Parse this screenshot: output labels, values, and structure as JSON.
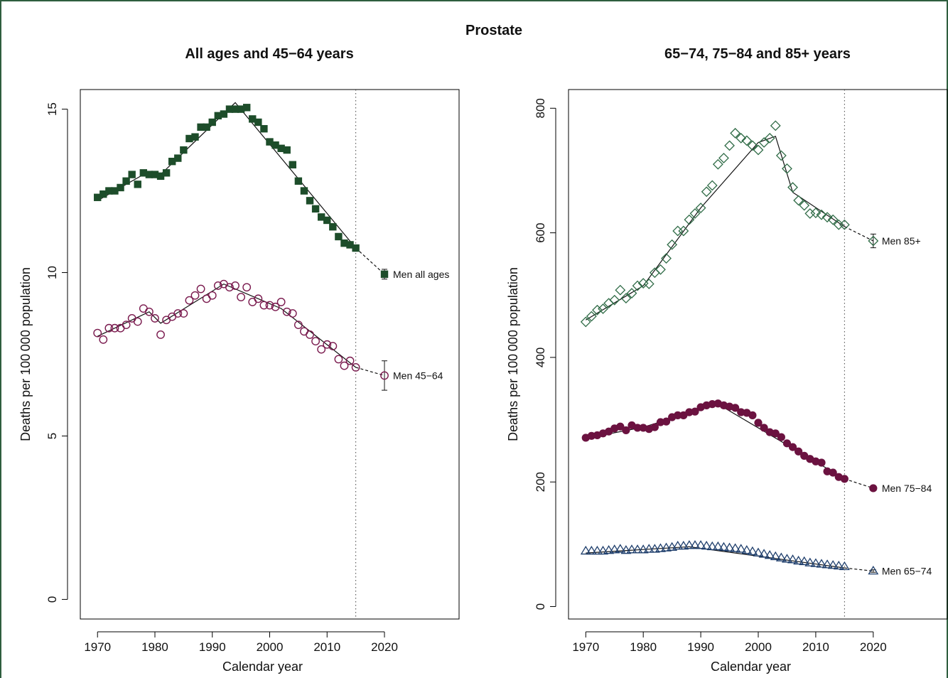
{
  "figure": {
    "title": "Prostate"
  },
  "chart_data": [
    {
      "type": "scatter",
      "title": "All ages and 45−64 years",
      "xlabel": "Calendar year",
      "ylabel": "Deaths per 100 000 population",
      "xlim": [
        1967,
        2033
      ],
      "ylim": [
        -0.6,
        15.6
      ],
      "xticks": [
        "1970",
        "1980",
        "1990",
        "2000",
        "2010",
        "2020"
      ],
      "yticks": [
        "0",
        "5",
        "10",
        "15"
      ],
      "reference_line_x": 2015,
      "series": [
        {
          "name": "Men all ages",
          "marker": "filled-square",
          "color": "#1d4d2a",
          "x": [
            1970,
            1971,
            1972,
            1973,
            1974,
            1975,
            1976,
            1977,
            1978,
            1979,
            1980,
            1981,
            1982,
            1983,
            1984,
            1985,
            1986,
            1987,
            1988,
            1989,
            1990,
            1991,
            1992,
            1993,
            1994,
            1995,
            1996,
            1997,
            1998,
            1999,
            2000,
            2001,
            2002,
            2003,
            2004,
            2005,
            2006,
            2007,
            2008,
            2009,
            2010,
            2011,
            2012,
            2013,
            2014,
            2015
          ],
          "values": [
            12.3,
            12.4,
            12.5,
            12.5,
            12.6,
            12.8,
            13.0,
            12.7,
            13.05,
            13.0,
            13.0,
            12.95,
            13.05,
            13.4,
            13.5,
            13.75,
            14.1,
            14.15,
            14.45,
            14.45,
            14.6,
            14.8,
            14.85,
            15.0,
            15.0,
            15.0,
            15.05,
            14.7,
            14.6,
            14.4,
            14.0,
            13.9,
            13.8,
            13.75,
            13.3,
            12.8,
            12.5,
            12.2,
            11.95,
            11.7,
            11.6,
            11.4,
            11.1,
            10.9,
            10.85,
            10.75
          ],
          "trend_x": [
            1970,
            1978,
            1981,
            1994,
            2015
          ],
          "trend": [
            12.2,
            13.0,
            13.0,
            15.2,
            10.75
          ],
          "projection": {
            "x": 2020,
            "value": 9.95,
            "ci_low": 9.8,
            "ci_high": 10.1
          }
        },
        {
          "name": "Men 45−64",
          "marker": "open-circle",
          "color": "#7a1a4e",
          "x": [
            1970,
            1971,
            1972,
            1973,
            1974,
            1975,
            1976,
            1977,
            1978,
            1979,
            1980,
            1981,
            1982,
            1983,
            1984,
            1985,
            1986,
            1987,
            1988,
            1989,
            1990,
            1991,
            1992,
            1993,
            1994,
            1995,
            1996,
            1997,
            1998,
            1999,
            2000,
            2001,
            2002,
            2003,
            2004,
            2005,
            2006,
            2007,
            2008,
            2009,
            2010,
            2011,
            2012,
            2013,
            2014,
            2015
          ],
          "values": [
            8.15,
            7.95,
            8.3,
            8.3,
            8.3,
            8.4,
            8.6,
            8.5,
            8.9,
            8.8,
            8.6,
            8.1,
            8.55,
            8.65,
            8.75,
            8.75,
            9.15,
            9.3,
            9.5,
            9.2,
            9.3,
            9.6,
            9.65,
            9.55,
            9.6,
            9.25,
            9.55,
            9.1,
            9.2,
            9.0,
            9.0,
            8.95,
            9.1,
            8.8,
            8.75,
            8.4,
            8.2,
            8.1,
            7.9,
            7.65,
            7.8,
            7.75,
            7.35,
            7.15,
            7.3,
            7.1
          ],
          "trend_x": [
            1970,
            1979,
            1981,
            1992,
            2002,
            2015
          ],
          "trend": [
            8.05,
            8.8,
            8.45,
            9.65,
            8.9,
            7.1
          ],
          "projection": {
            "x": 2020,
            "value": 6.85,
            "ci_low": 6.4,
            "ci_high": 7.3
          }
        }
      ]
    },
    {
      "type": "scatter",
      "title": "65−74, 75−84 and 85+ years",
      "xlabel": "Calendar year",
      "ylabel": "Deaths per 100 000 population",
      "xlim": [
        1967,
        2033
      ],
      "ylim": [
        -20,
        830
      ],
      "xticks": [
        "1970",
        "1980",
        "1990",
        "2000",
        "2010",
        "2020"
      ],
      "yticks": [
        "0",
        "200",
        "400",
        "600",
        "800"
      ],
      "reference_line_x": 2015,
      "series": [
        {
          "name": "Men 85+",
          "marker": "open-diamond",
          "color": "#2f6b46",
          "x": [
            1970,
            1971,
            1972,
            1973,
            1974,
            1975,
            1976,
            1977,
            1978,
            1979,
            1980,
            1981,
            1982,
            1983,
            1984,
            1985,
            1986,
            1987,
            1988,
            1989,
            1990,
            1991,
            1992,
            1993,
            1994,
            1995,
            1996,
            1997,
            1998,
            1999,
            2000,
            2001,
            2002,
            2003,
            2004,
            2005,
            2006,
            2007,
            2008,
            2009,
            2010,
            2011,
            2012,
            2013,
            2014,
            2015
          ],
          "values": [
            457,
            466,
            476,
            478,
            487,
            492,
            508,
            495,
            503,
            515,
            519,
            518,
            536,
            541,
            559,
            581,
            603,
            603,
            621,
            631,
            640,
            666,
            676,
            710,
            720,
            740,
            760,
            752,
            748,
            740,
            733,
            745,
            752,
            772,
            724,
            703,
            673,
            652,
            644,
            631,
            632,
            629,
            625,
            621,
            613,
            613
          ],
          "trend_x": [
            1970,
            1980,
            1990,
            2000,
            2003,
            2006,
            2015
          ],
          "trend": [
            460,
            515,
            640,
            745,
            755,
            665,
            610
          ],
          "projection": {
            "x": 2020,
            "value": 587,
            "ci_low": 576,
            "ci_high": 598
          }
        },
        {
          "name": "Men 75−84",
          "marker": "filled-circle",
          "color": "#6b1240",
          "x": [
            1970,
            1971,
            1972,
            1973,
            1974,
            1975,
            1976,
            1977,
            1978,
            1979,
            1980,
            1981,
            1982,
            1983,
            1984,
            1985,
            1986,
            1987,
            1988,
            1989,
            1990,
            1991,
            1992,
            1993,
            1994,
            1995,
            1996,
            1997,
            1998,
            1999,
            2000,
            2001,
            2002,
            2003,
            2004,
            2005,
            2006,
            2007,
            2008,
            2009,
            2010,
            2011,
            2012,
            2013,
            2014,
            2015
          ],
          "values": [
            271,
            274,
            275,
            278,
            281,
            286,
            289,
            283,
            291,
            287,
            287,
            285,
            288,
            296,
            297,
            304,
            307,
            307,
            312,
            313,
            320,
            323,
            325,
            326,
            323,
            321,
            319,
            312,
            311,
            307,
            295,
            287,
            280,
            278,
            272,
            262,
            256,
            249,
            242,
            237,
            233,
            231,
            217,
            215,
            208,
            205
          ],
          "trend_x": [
            1970,
            1980,
            1993,
            2015
          ],
          "trend": [
            270,
            288,
            325,
            205
          ],
          "projection": {
            "x": 2020,
            "value": 190,
            "ci_low": 188,
            "ci_high": 193
          }
        },
        {
          "name": "Men 65−74",
          "marker": "open-triangle",
          "color": "#1d3d6b",
          "x": [
            1970,
            1971,
            1972,
            1973,
            1974,
            1975,
            1976,
            1977,
            1978,
            1979,
            1980,
            1981,
            1982,
            1983,
            1984,
            1985,
            1986,
            1987,
            1988,
            1989,
            1990,
            1991,
            1992,
            1993,
            1994,
            1995,
            1996,
            1997,
            1998,
            1999,
            2000,
            2001,
            2002,
            2003,
            2004,
            2005,
            2006,
            2007,
            2008,
            2009,
            2010,
            2011,
            2012,
            2013,
            2014,
            2015
          ],
          "values": [
            89,
            89,
            89,
            89,
            90,
            91,
            92,
            90,
            91,
            91,
            91,
            92,
            92,
            93,
            94,
            95,
            97,
            97,
            98,
            98,
            98,
            97,
            96,
            96,
            95,
            94,
            93,
            92,
            90,
            88,
            86,
            84,
            82,
            80,
            78,
            76,
            75,
            73,
            72,
            70,
            69,
            68,
            67,
            66,
            65,
            64
          ],
          "trend_x": [
            1970,
            1988,
            2015
          ],
          "trend": [
            86,
            96,
            62
          ],
          "projection": {
            "x": 2020,
            "value": 57,
            "ci_low": 55,
            "ci_high": 59
          }
        }
      ]
    }
  ]
}
